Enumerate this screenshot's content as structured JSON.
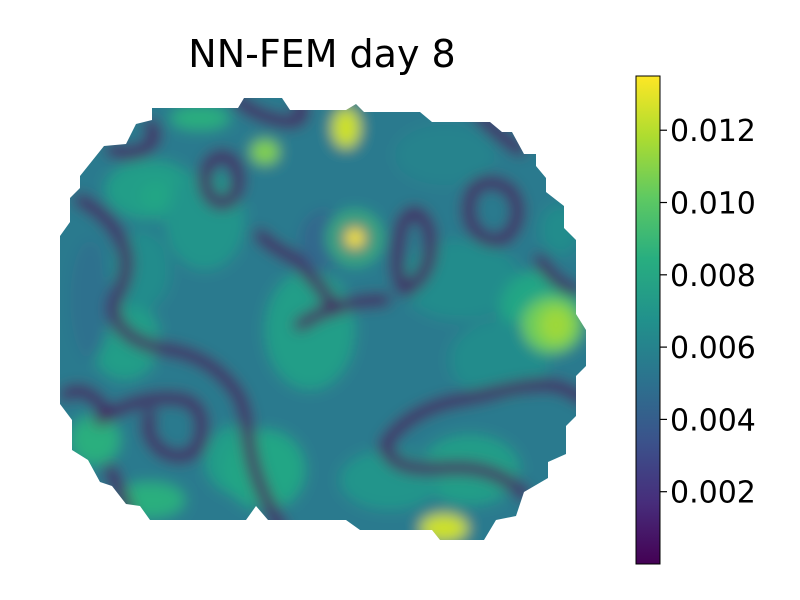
{
  "chart_data": {
    "type": "heatmap",
    "title": "NN-FEM day 8",
    "colormap": "viridis",
    "colorbar": {
      "vmin": 0.0,
      "vmax": 0.0135,
      "ticks": [
        0.002,
        0.004,
        0.006,
        0.008,
        0.01,
        0.012
      ],
      "tick_labels": [
        "0.002",
        "0.004",
        "0.006",
        "0.008",
        "0.010",
        "0.012"
      ]
    },
    "axes_visible": false,
    "hotspots": [
      {
        "label": "central ring peak",
        "value": 0.0135
      },
      {
        "label": "top spot",
        "value": 0.0125
      },
      {
        "label": "bottom spot",
        "value": 0.0125
      },
      {
        "label": "right region",
        "value": 0.0115
      }
    ]
  }
}
